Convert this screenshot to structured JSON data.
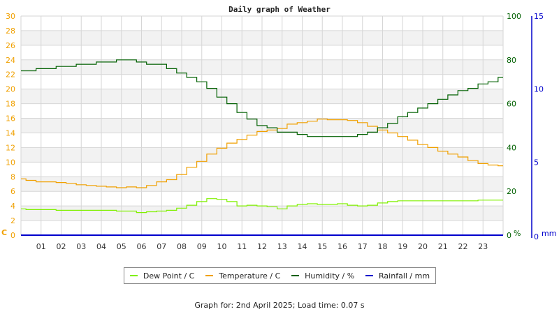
{
  "chart_data": {
    "type": "line",
    "title": "Daily graph of Weather",
    "xlabel": "",
    "x_ticks": [
      "01",
      "02",
      "03",
      "04",
      "05",
      "06",
      "07",
      "08",
      "09",
      "10",
      "11",
      "12",
      "13",
      "14",
      "15",
      "16",
      "17",
      "18",
      "19",
      "20",
      "21",
      "22",
      "23"
    ],
    "x_range_hours": [
      0,
      24
    ],
    "axes": {
      "left": {
        "label": "C",
        "range": [
          0,
          30
        ],
        "ticks": [
          0,
          2,
          4,
          6,
          8,
          10,
          12,
          14,
          16,
          18,
          20,
          22,
          24,
          26,
          28,
          30
        ],
        "color": "#f0a000"
      },
      "right_humidity": {
        "label": "%",
        "range": [
          0,
          100
        ],
        "ticks": [
          0,
          20,
          40,
          60,
          80,
          100
        ],
        "color": "#006000"
      },
      "right_rain": {
        "label": "mm",
        "range": [
          0,
          15
        ],
        "ticks": [
          0,
          5,
          10,
          15
        ],
        "color": "#0000cc"
      }
    },
    "grid": true,
    "legend_position": "bottom",
    "hours": [
      0,
      0.5,
      1,
      1.5,
      2,
      2.5,
      3,
      3.5,
      4,
      4.5,
      5,
      5.5,
      6,
      6.5,
      7,
      7.5,
      8,
      8.5,
      9,
      9.5,
      10,
      10.5,
      11,
      11.5,
      12,
      12.5,
      13,
      13.5,
      14,
      14.5,
      15,
      15.5,
      16,
      16.5,
      17,
      17.5,
      18,
      18.5,
      19,
      19.5,
      20,
      20.5,
      21,
      21.5,
      22,
      22.5,
      23,
      23.5,
      24
    ],
    "series": [
      {
        "name": "Dew Point / C",
        "axis": "left",
        "color": "#80f000",
        "values": [
          3.6,
          3.5,
          3.5,
          3.5,
          3.4,
          3.4,
          3.4,
          3.4,
          3.4,
          3.4,
          3.3,
          3.3,
          3.1,
          3.2,
          3.3,
          3.4,
          3.7,
          4.1,
          4.6,
          5.0,
          4.9,
          4.6,
          4.0,
          4.1,
          4.0,
          3.9,
          3.6,
          4.0,
          4.2,
          4.3,
          4.2,
          4.2,
          4.3,
          4.1,
          4.0,
          4.1,
          4.4,
          4.6,
          4.7,
          4.7,
          4.7,
          4.7,
          4.7,
          4.7,
          4.7,
          4.7,
          4.8,
          4.8,
          4.8
        ]
      },
      {
        "name": "Temperature / C",
        "axis": "left",
        "color": "#f0a000",
        "values": [
          7.7,
          7.5,
          7.3,
          7.3,
          7.2,
          7.1,
          6.9,
          6.8,
          6.7,
          6.6,
          6.5,
          6.6,
          6.5,
          6.8,
          7.3,
          7.6,
          8.3,
          9.3,
          10.1,
          11.1,
          11.9,
          12.6,
          13.1,
          13.7,
          14.2,
          14.4,
          14.6,
          15.2,
          15.4,
          15.6,
          15.9,
          15.8,
          15.8,
          15.7,
          15.4,
          14.9,
          14.4,
          14.0,
          13.5,
          13.0,
          12.4,
          12.0,
          11.5,
          11.1,
          10.7,
          10.2,
          9.8,
          9.6,
          9.5
        ]
      },
      {
        "name": "Humidity / %",
        "axis": "right_humidity",
        "color": "#006000",
        "values": [
          75,
          75,
          76,
          76,
          77,
          77,
          78,
          78,
          79,
          79,
          80,
          80,
          79,
          78,
          78,
          76,
          74,
          72,
          70,
          67,
          63,
          60,
          56,
          53,
          50,
          49,
          47,
          47,
          46,
          45,
          45,
          45,
          45,
          45,
          46,
          47,
          49,
          51,
          54,
          56,
          58,
          60,
          62,
          64,
          66,
          67,
          69,
          70,
          72
        ]
      },
      {
        "name": "Rainfall / mm",
        "axis": "right_rain",
        "color": "#0000cc",
        "values": [
          0,
          0,
          0,
          0,
          0,
          0,
          0,
          0,
          0,
          0,
          0,
          0,
          0,
          0,
          0,
          0,
          0,
          0,
          0,
          0,
          0,
          0,
          0,
          0,
          0,
          0,
          0,
          0,
          0,
          0,
          0,
          0,
          0,
          0,
          0,
          0,
          0,
          0,
          0,
          0,
          0,
          0,
          0,
          0,
          0,
          0,
          0,
          0,
          0
        ]
      }
    ]
  },
  "legend": {
    "items": [
      {
        "label": "Dew Point / C",
        "color": "#80f000"
      },
      {
        "label": "Temperature / C",
        "color": "#f0a000"
      },
      {
        "label": "Humidity / %",
        "color": "#006000"
      },
      {
        "label": "Rainfall / mm",
        "color": "#0000cc"
      }
    ]
  },
  "footer": {
    "text": "Graph for: 2nd April 2025; Load time: 0.07 s"
  }
}
